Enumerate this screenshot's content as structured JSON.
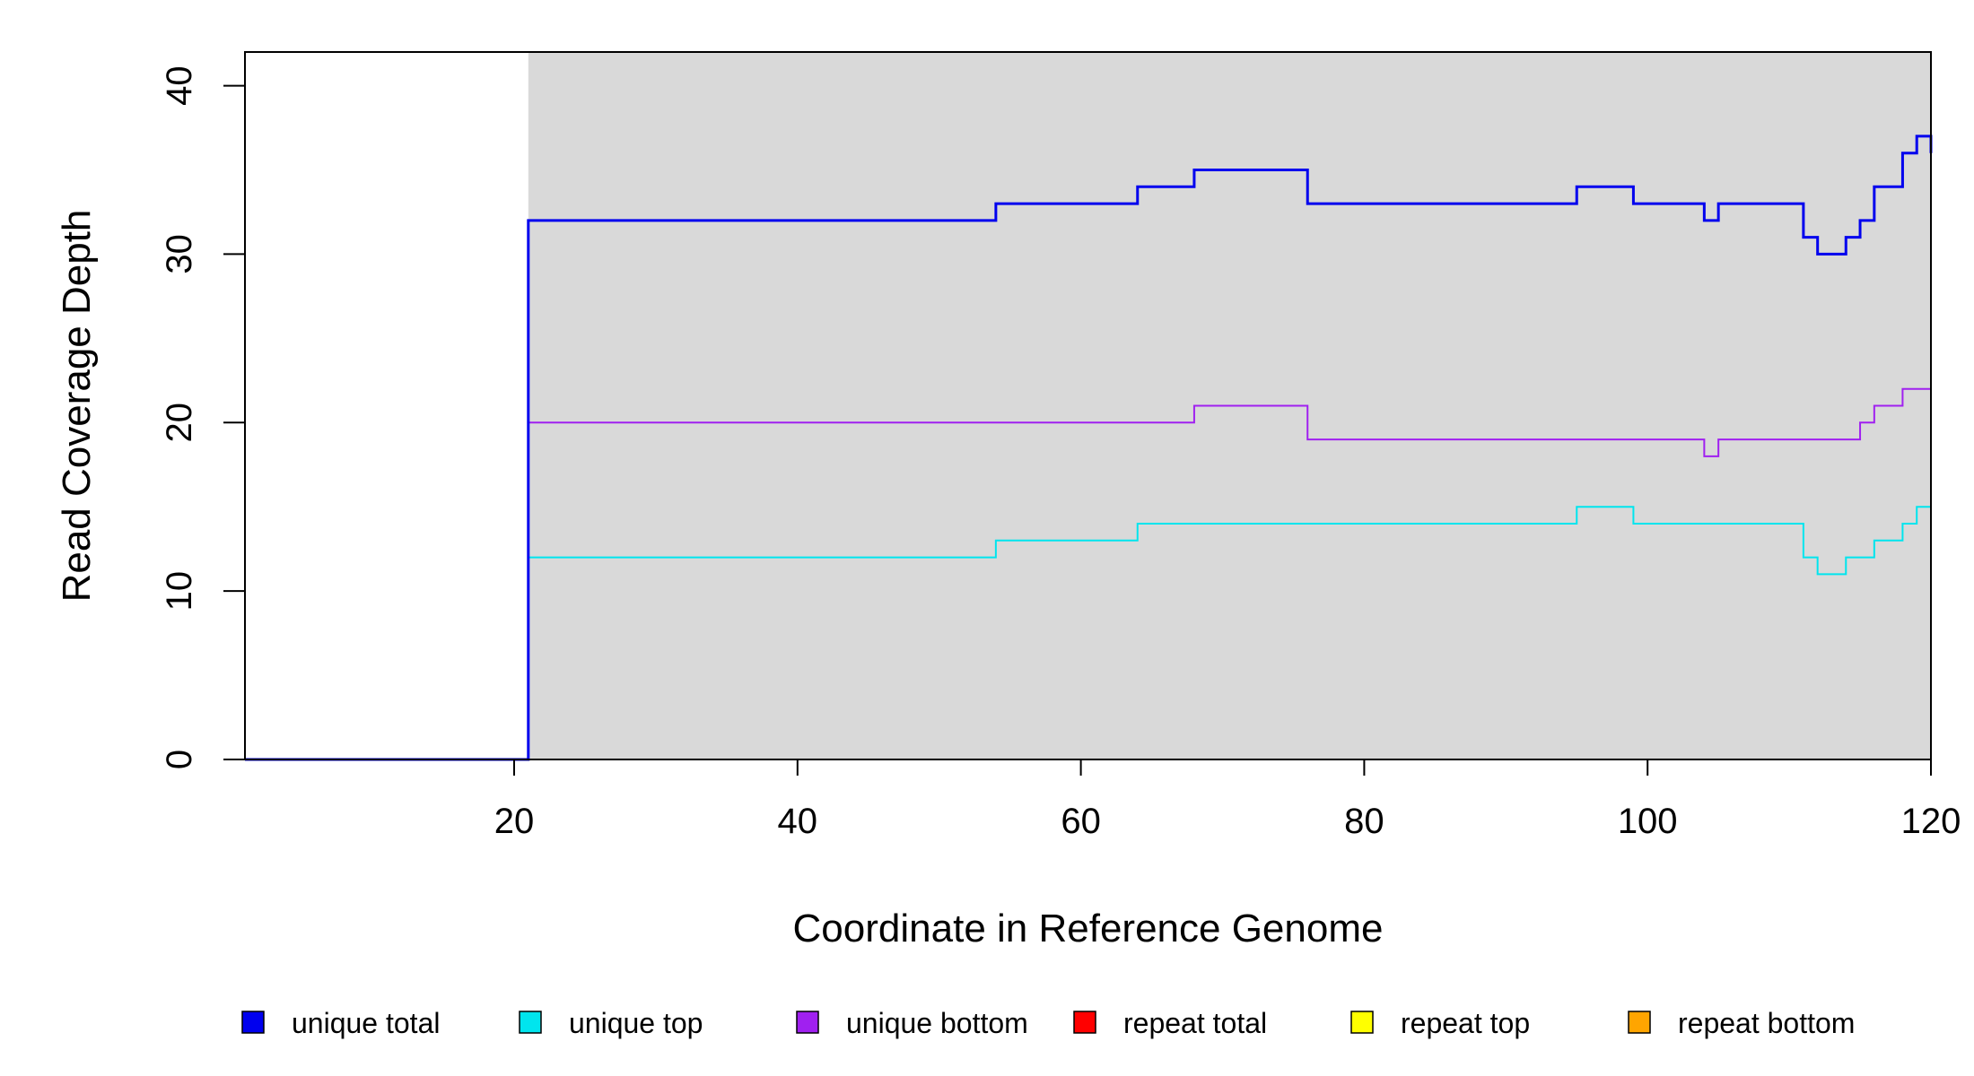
{
  "chart_data": {
    "type": "line",
    "step": true,
    "xlabel": "Coordinate in Reference Genome",
    "ylabel": "Read Coverage Depth",
    "xlim": [
      1,
      120
    ],
    "ylim": [
      0,
      42
    ],
    "x_ticks": [
      20,
      40,
      60,
      80,
      100,
      120
    ],
    "y_ticks": [
      0,
      10,
      20,
      30,
      40
    ],
    "shaded_region": {
      "x": [
        21,
        120
      ],
      "color": "#d9d9d9"
    },
    "legend_position": "bottom",
    "series": [
      {
        "name": "unique total",
        "color": "#0000ee",
        "x": [
          1,
          21,
          54,
          64,
          68,
          76,
          95,
          99,
          104,
          105,
          111,
          112,
          114,
          115,
          116,
          118,
          119,
          120
        ],
        "y": [
          0,
          32,
          33,
          34,
          35,
          33,
          34,
          33,
          32,
          33,
          31,
          30,
          31,
          32,
          34,
          36,
          37,
          36
        ]
      },
      {
        "name": "unique top",
        "color": "#00e5ee",
        "x": [
          1,
          21,
          54,
          64,
          95,
          99,
          111,
          112,
          114,
          116,
          118,
          119,
          120
        ],
        "y": [
          0,
          12,
          13,
          14,
          15,
          14,
          12,
          11,
          12,
          13,
          14,
          15,
          15
        ]
      },
      {
        "name": "unique bottom",
        "color": "#a020f0",
        "x": [
          1,
          21,
          68,
          76,
          104,
          105,
          115,
          116,
          118,
          120
        ],
        "y": [
          0,
          20,
          21,
          19,
          18,
          19,
          20,
          21,
          22,
          22
        ]
      },
      {
        "name": "repeat total",
        "color": "#ff0000",
        "x": [
          1,
          120
        ],
        "y": [
          0,
          0
        ]
      },
      {
        "name": "repeat top",
        "color": "#ffff00",
        "x": [
          1,
          120
        ],
        "y": [
          0,
          0
        ]
      },
      {
        "name": "repeat bottom",
        "color": "#ffa500",
        "x": [
          1,
          120
        ],
        "y": [
          0,
          0
        ]
      }
    ]
  }
}
